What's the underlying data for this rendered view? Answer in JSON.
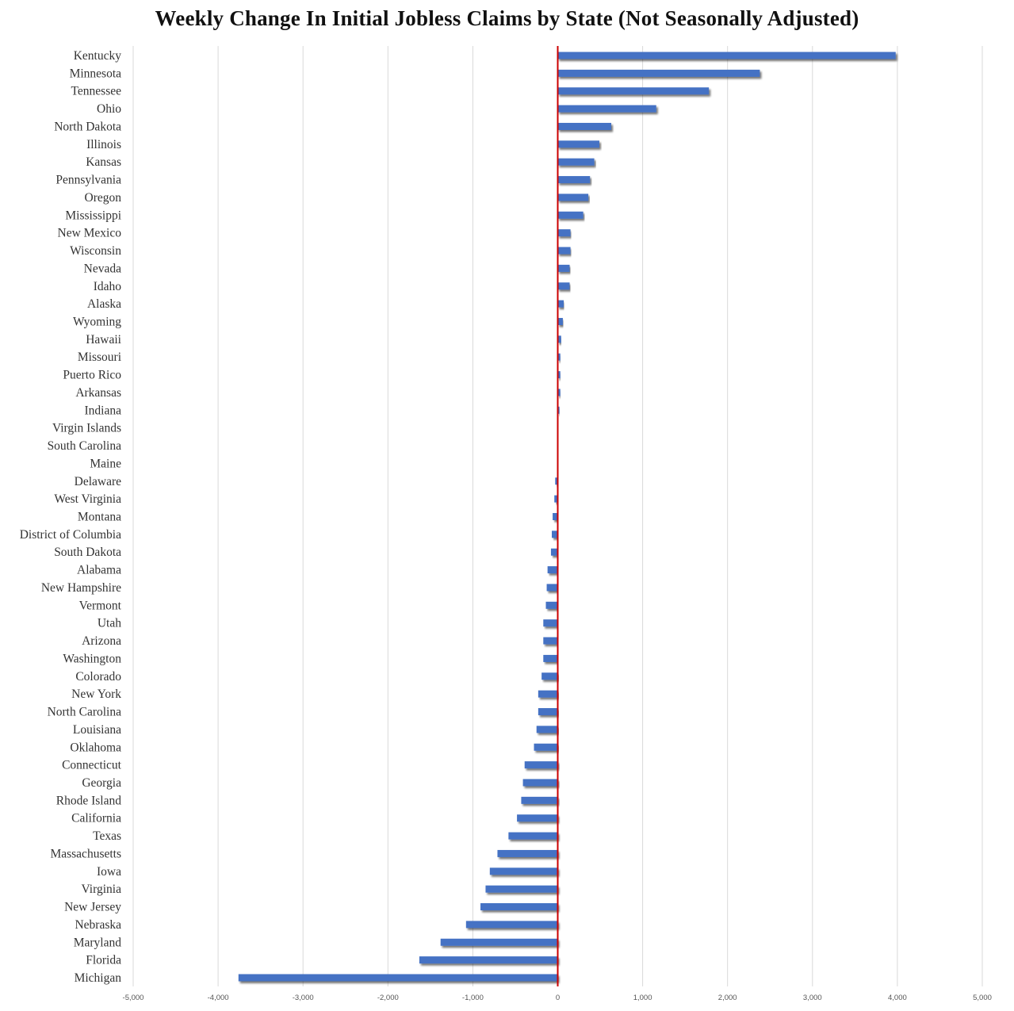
{
  "title": "Weekly Change In Initial Jobless Claims by State (Not Seasonally Adjusted)",
  "colors": {
    "bar": "#4472C4",
    "bar_shadow": "#8a8a8a",
    "zero_line": "#CC0000",
    "grid": "#D9D9D9"
  },
  "chart_data": {
    "type": "bar",
    "orientation": "horizontal",
    "title": "Weekly Change In Initial Jobless Claims by State (Not Seasonally Adjusted)",
    "xlabel": "",
    "ylabel": "",
    "xlim": [
      -5000,
      5000
    ],
    "x_ticks": [
      -5000,
      -4000,
      -3000,
      -2000,
      -1000,
      0,
      1000,
      2000,
      3000,
      4000,
      5000
    ],
    "x_tick_labels": [
      "-5,000",
      "-4,000",
      "-3,000",
      "-2,000",
      "-1,000",
      "0",
      "1,000",
      "2,000",
      "3,000",
      "4,000",
      "5,000"
    ],
    "grid": "vertical",
    "categories": [
      "Kentucky",
      "Minnesota",
      "Tennessee",
      "Ohio",
      "North Dakota",
      "Illinois",
      "Kansas",
      "Pennsylvania",
      "Oregon",
      "Mississippi",
      "New Mexico",
      "Wisconsin",
      "Nevada",
      "Idaho",
      "Alaska",
      "Wyoming",
      "Hawaii",
      "Missouri",
      "Puerto Rico",
      "Arkansas",
      "Indiana",
      "Virgin Islands",
      "South Carolina",
      "Maine",
      "Delaware",
      "West Virginia",
      "Montana",
      "District of Columbia",
      "South Dakota",
      "Alabama",
      "New Hampshire",
      "Vermont",
      "Utah",
      "Arizona",
      "Washington",
      "Colorado",
      "New York",
      "North Carolina",
      "Louisiana",
      "Oklahoma",
      "Connecticut",
      "Georgia",
      "Rhode Island",
      "California",
      "Texas",
      "Massachusetts",
      "Iowa",
      "Virginia",
      "New Jersey",
      "Nebraska",
      "Maryland",
      "Florida",
      "Michigan"
    ],
    "values": [
      3980,
      2380,
      1780,
      1160,
      630,
      490,
      430,
      380,
      360,
      300,
      150,
      150,
      140,
      140,
      70,
      60,
      40,
      30,
      30,
      30,
      20,
      0,
      0,
      0,
      -30,
      -40,
      -60,
      -70,
      -80,
      -120,
      -130,
      -140,
      -170,
      -170,
      -170,
      -190,
      -230,
      -230,
      -250,
      -280,
      -390,
      -410,
      -430,
      -480,
      -580,
      -710,
      -800,
      -850,
      -910,
      -1080,
      -1380,
      -1630,
      -3760
    ]
  }
}
